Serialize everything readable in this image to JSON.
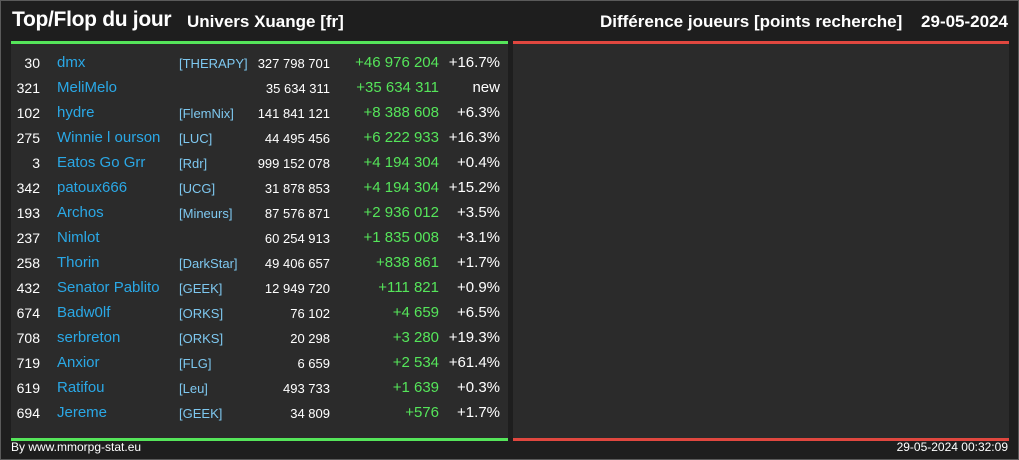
{
  "header": {
    "title": "Top/Flop du jour",
    "subtitle": "Univers Xuange [fr]",
    "metric": "Différence joueurs [points recherche]",
    "date": "29-05-2024"
  },
  "colors": {
    "background": "#1e1e1e",
    "panel": "#2b2b2b",
    "top_accent": "#55e55a",
    "flop_accent": "#e0473f",
    "player_name": "#2aa8e6",
    "alliance_tag": "#7ec8f0"
  },
  "top": {
    "rows": [
      {
        "rank": "30",
        "name": "dmx",
        "tag": "[THERAPY]",
        "points": "327 798 701",
        "diff": "+46 976 204",
        "pct": "+16.7%"
      },
      {
        "rank": "321",
        "name": "MeliMelo",
        "tag": "",
        "points": "35 634 311",
        "diff": "+35 634 311",
        "pct": "new"
      },
      {
        "rank": "102",
        "name": "hydre",
        "tag": "[FlemNix]",
        "points": "141 841 121",
        "diff": "+8 388 608",
        "pct": "+6.3%"
      },
      {
        "rank": "275",
        "name": "Winnie l ourson",
        "tag": "[LUC]",
        "points": "44 495 456",
        "diff": "+6 222 933",
        "pct": "+16.3%"
      },
      {
        "rank": "3",
        "name": "Eatos Go Grr",
        "tag": "[Rdr]",
        "points": "999 152 078",
        "diff": "+4 194 304",
        "pct": "+0.4%"
      },
      {
        "rank": "342",
        "name": "patoux666",
        "tag": "[UCG]",
        "points": "31 878 853",
        "diff": "+4 194 304",
        "pct": "+15.2%"
      },
      {
        "rank": "193",
        "name": "Archos",
        "tag": "[Mineurs]",
        "points": "87 576 871",
        "diff": "+2 936 012",
        "pct": "+3.5%"
      },
      {
        "rank": "237",
        "name": "Nimlot",
        "tag": "",
        "points": "60 254 913",
        "diff": "+1 835 008",
        "pct": "+3.1%"
      },
      {
        "rank": "258",
        "name": "Thorin",
        "tag": "[DarkStar]",
        "points": "49 406 657",
        "diff": "+838 861",
        "pct": "+1.7%"
      },
      {
        "rank": "432",
        "name": "Senator Pablito",
        "tag": "[GEEK]",
        "points": "12 949 720",
        "diff": "+111 821",
        "pct": "+0.9%"
      },
      {
        "rank": "674",
        "name": "Badw0lf",
        "tag": "[ORKS]",
        "points": "76 102",
        "diff": "+4 659",
        "pct": "+6.5%"
      },
      {
        "rank": "708",
        "name": "serbreton",
        "tag": "[ORKS]",
        "points": "20 298",
        "diff": "+3 280",
        "pct": "+19.3%"
      },
      {
        "rank": "719",
        "name": "Anxior",
        "tag": "[FLG]",
        "points": "6 659",
        "diff": "+2 534",
        "pct": "+61.4%"
      },
      {
        "rank": "619",
        "name": "Ratifou",
        "tag": "[Leu]",
        "points": "493 733",
        "diff": "+1 639",
        "pct": "+0.3%"
      },
      {
        "rank": "694",
        "name": "Jereme",
        "tag": "[GEEK]",
        "points": "34 809",
        "diff": "+576",
        "pct": "+1.7%"
      }
    ]
  },
  "flop": {
    "rows": []
  },
  "footer": {
    "credit": "By www.mmorpg-stat.eu",
    "timestamp": "29-05-2024 00:32:09"
  }
}
